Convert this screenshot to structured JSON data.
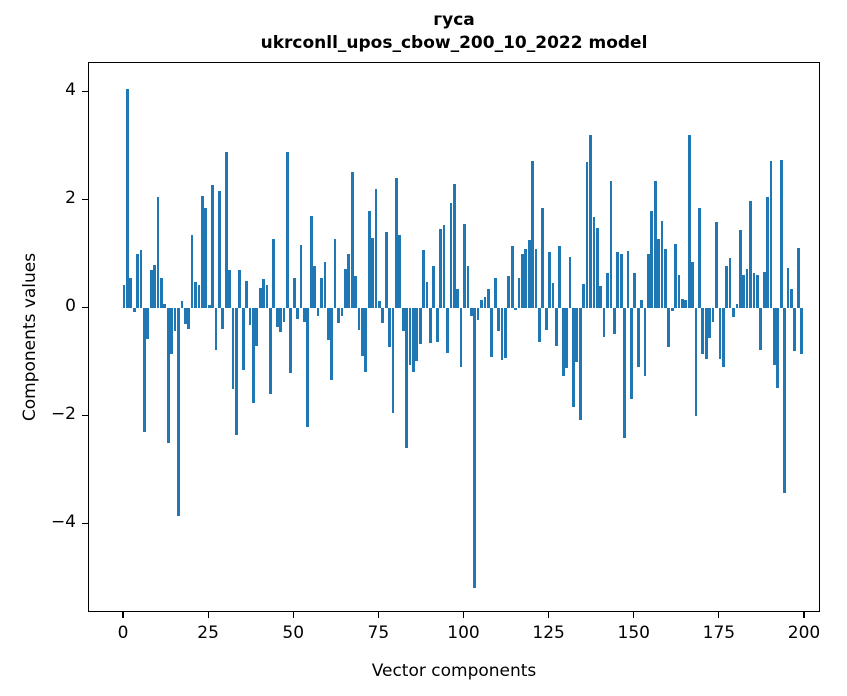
{
  "figure": {
    "title_line1": "гуса",
    "title_line2": "ukrconll_upos_cbow_200_10_2022 model",
    "xlabel": "Vector components",
    "ylabel": "Components values",
    "bar_color": "#1f77b4",
    "axis_color": "#000000",
    "background_color": "#ffffff"
  },
  "chart_data": {
    "type": "bar",
    "title": "гуса\nukrconll_upos_cbow_200_10_2022 model",
    "xlabel": "Vector components",
    "ylabel": "Components values",
    "x_is_index": true,
    "n_bars": 200,
    "xlim": [
      -10,
      210
    ],
    "ylim": [
      -5.65,
      4.54
    ],
    "x_ticks": [
      0,
      25,
      50,
      75,
      100,
      125,
      150,
      175,
      200
    ],
    "y_ticks": [
      4,
      2,
      0,
      -2,
      -4
    ],
    "grid": false,
    "legend": null,
    "values": [
      0.42,
      4.05,
      0.55,
      -0.08,
      1.0,
      1.08,
      -2.3,
      -0.58,
      0.7,
      0.8,
      2.05,
      0.55,
      0.08,
      -2.5,
      -0.86,
      -0.42,
      -3.85,
      0.13,
      -0.29,
      -0.39,
      1.35,
      0.49,
      0.42,
      2.08,
      1.85,
      0.05,
      2.28,
      -0.77,
      2.16,
      -0.38,
      2.88,
      0.7,
      -1.5,
      -2.35,
      0.7,
      -1.15,
      0.5,
      -0.32,
      -1.76,
      -0.71,
      0.37,
      0.53,
      0.42,
      -1.6,
      1.27,
      -0.35,
      -0.44,
      -0.26,
      2.88,
      -1.2,
      0.55,
      -0.2,
      1.17,
      -0.26,
      -2.2,
      1.7,
      0.78,
      -0.15,
      0.55,
      0.85,
      -0.6,
      -1.34,
      1.27,
      -0.28,
      -0.15,
      0.73,
      1.0,
      2.51,
      0.6,
      -0.4,
      -0.88,
      -1.18,
      1.8,
      1.3,
      2.2,
      0.13,
      -0.28,
      1.4,
      -0.72,
      -1.95,
      2.4,
      1.35,
      -0.43,
      -2.6,
      -1.05,
      -1.18,
      -0.98,
      -0.67,
      1.07,
      0.48,
      -0.65,
      0.78,
      -0.63,
      1.47,
      1.54,
      -0.83,
      1.95,
      2.3,
      0.36,
      -1.1,
      1.55,
      0.77,
      -0.15,
      -5.18,
      -0.23,
      0.15,
      0.2,
      0.35,
      -0.9,
      0.56,
      -0.43,
      -0.96,
      -0.93,
      0.6,
      1.15,
      -0.04,
      0.55,
      1.0,
      1.09,
      1.26,
      2.72,
      1.09,
      -0.63,
      1.85,
      -0.4,
      1.04,
      0.46,
      -0.7,
      1.15,
      -1.26,
      -1.11,
      0.94,
      -1.84,
      -1.0,
      -2.07,
      0.45,
      2.7,
      3.2,
      1.69,
      1.48,
      0.4,
      -0.54,
      0.64,
      2.35,
      -0.49,
      1.04,
      1.0,
      -2.41,
      1.05,
      -1.68,
      0.65,
      -1.1,
      0.14,
      -1.25,
      1.0,
      1.8,
      2.35,
      1.27,
      1.62,
      1.09,
      -0.72,
      -0.05,
      1.19,
      0.61,
      0.17,
      0.15,
      3.2,
      0.85,
      -2.0,
      1.85,
      -0.85,
      -0.95,
      -0.55,
      -0.25,
      1.6,
      -0.95,
      -1.1,
      0.78,
      0.93,
      -0.17,
      0.07,
      1.45,
      0.61,
      0.73,
      1.98,
      0.65,
      0.62,
      -0.78,
      0.66,
      2.05,
      2.72,
      -1.05,
      -1.48,
      2.75,
      -3.42,
      0.75,
      0.35,
      -0.8,
      1.12,
      -0.85
    ]
  },
  "layout_values": {
    "y_tick_display": [
      "4",
      "2",
      "0",
      "−2",
      "−4"
    ],
    "x_tick_display": [
      "0",
      "25",
      "50",
      "75",
      "100",
      "125",
      "150",
      "175",
      "200"
    ]
  }
}
